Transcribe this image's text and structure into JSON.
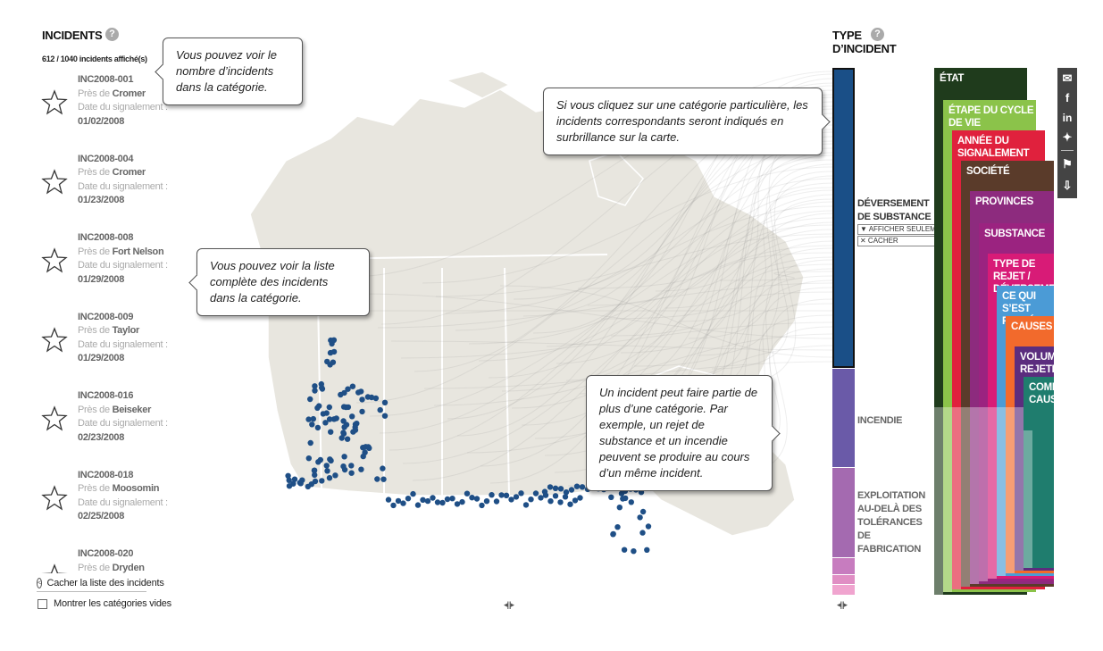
{
  "incidents_panel": {
    "title": "INCIDENTS",
    "help_icon": "?",
    "count_text": "612 / 1040 incidents affiché(s)",
    "near_prefix": "Près de",
    "date_label": "Date du signalement :",
    "items": [
      {
        "id": "INC2008-001",
        "place": "Cromer",
        "date": "01/02/2008"
      },
      {
        "id": "INC2008-004",
        "place": "Cromer",
        "date": "01/23/2008"
      },
      {
        "id": "INC2008-008",
        "place": "Fort Nelson",
        "date": "01/29/2008"
      },
      {
        "id": "INC2008-009",
        "place": "Taylor",
        "date": "01/29/2008"
      },
      {
        "id": "INC2008-016",
        "place": "Beiseker",
        "date": "02/23/2008"
      },
      {
        "id": "INC2008-018",
        "place": "Moosomin",
        "date": "02/25/2008"
      },
      {
        "id": "INC2008-020",
        "place": "Dryden",
        "date": ""
      }
    ],
    "hide_list_label": "Cacher la liste des incidents",
    "show_empty_label": "Montrer les catégories vides"
  },
  "tooltips": {
    "count_tip": "Vous pouvez voir le nombre d’incidents dans la catégorie.",
    "list_tip": "Vous pouvez voir la liste complète des incidents dans la catégorie.",
    "click_tip": "Si vous cliquez sur une catégorie particulière, les incidents correspondants seront indiqués en surbrillance sur la carte.",
    "multi_tip": "Un incident peut faire partie de plus d’une catégorie. Par exemple, un rejet de substance et un incendie peuvent se produire au cours d’un même incident."
  },
  "category_panel": {
    "title_line1": "TYPE",
    "title_line2": "D’INCIDENT",
    "help_icon": "?",
    "categories": [
      {
        "label_line1": "DÉVERSEMENT",
        "label_line2": "DE SUBSTANCE",
        "color": "#1a4f87"
      },
      {
        "label_line1": "INCENDIE",
        "label_line2": "",
        "color": "#6a5aa8"
      },
      {
        "label_line1": "EXPLOITATION",
        "label_line2": "AU-DELÀ DES TOLÉRANCES DE FABRICATION",
        "color": "#a46ab0"
      }
    ],
    "show_only_label": "▼ AFFICHER SEULEMENT",
    "hide_label": "✕ CACHER"
  },
  "dimensions": [
    {
      "label": "ÉTAT",
      "color": "#1f3b1c"
    },
    {
      "label": "ÉTAPE DU CYCLE DE VIE",
      "color": "#8bc34a"
    },
    {
      "label": "ANNÉE DU SIGNALEMENT",
      "color": "#e0213d"
    },
    {
      "label": "SOCIÉTÉ",
      "color": "#5a3b2a"
    },
    {
      "label": "PROVINCES",
      "color": "#8d2b7e"
    },
    {
      "label": "SUBSTANCE",
      "color": "#9b2380"
    },
    {
      "label": "TYPE DE REJET / DÉVERSEMENT",
      "color": "#d81b77"
    },
    {
      "label": "CE QUI S’EST PASSÉ",
      "color": "#4b9bd6"
    },
    {
      "label": "CAUSES",
      "color": "#f26a2c"
    },
    {
      "label": "VOLUME REJETÉ",
      "color": "#5b2d7e"
    },
    {
      "label": "COMPOSANT CAUSE",
      "color": "#1f7d6e"
    }
  ],
  "share_icons": [
    "email-icon",
    "facebook-icon",
    "linkedin-icon",
    "twitter-icon",
    "bookmark-icon",
    "download-icon"
  ]
}
